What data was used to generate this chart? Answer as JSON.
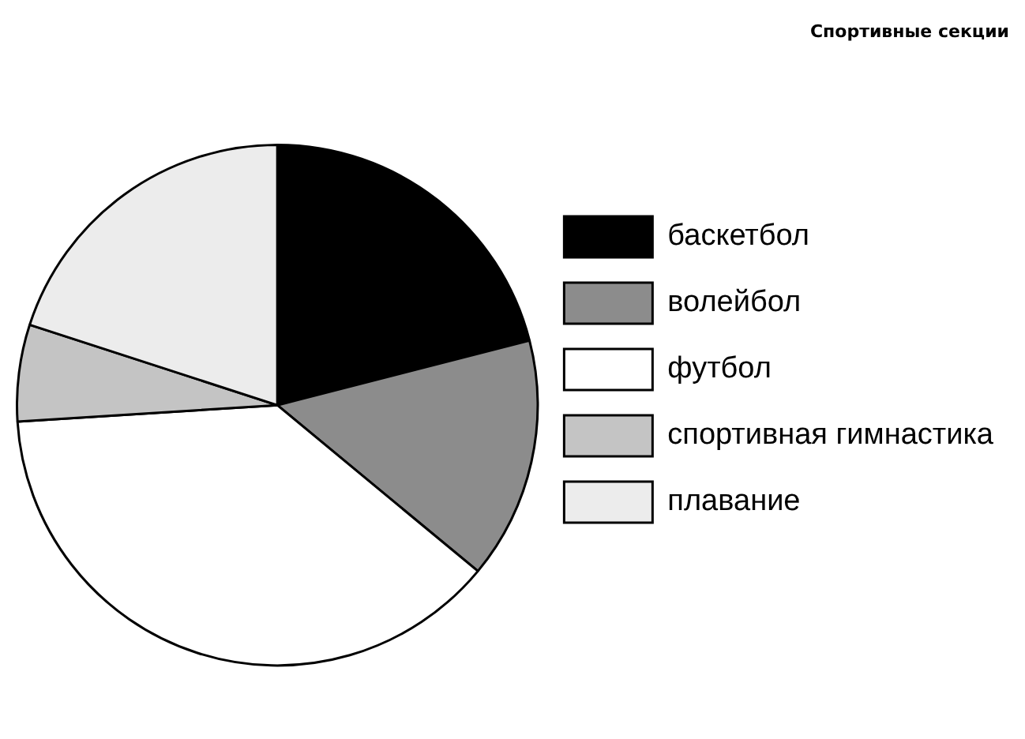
{
  "chart_data": {
    "type": "pie",
    "title": "Спортивные секции",
    "categories": [
      "баскетбол",
      "волейбол",
      "футбол",
      "спортивная гимнастика",
      "плавание"
    ],
    "values": [
      21,
      15,
      38,
      6,
      20
    ],
    "colors": [
      "#000000",
      "#8c8c8c",
      "#ffffff",
      "#c4c4c4",
      "#ececec"
    ],
    "legend": "right"
  }
}
